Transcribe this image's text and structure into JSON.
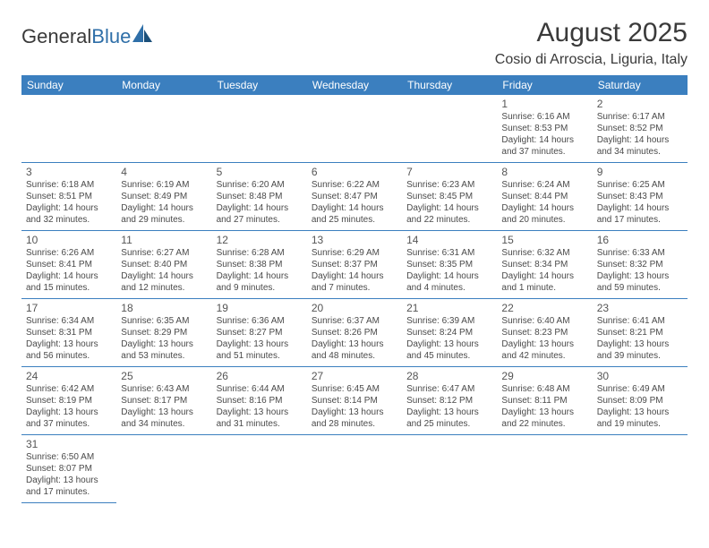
{
  "brand": {
    "name1": "General",
    "name2": "Blue"
  },
  "header": {
    "title": "August 2025",
    "location": "Cosio di Arroscia, Liguria, Italy"
  },
  "colors": {
    "header_bg": "#3b7fbf",
    "header_text": "#ffffff",
    "border": "#3b7fbf",
    "text": "#4a4a4a",
    "title": "#3a3a3a"
  },
  "typography": {
    "title_fontsize": 30,
    "location_fontsize": 16,
    "dayhead_fontsize": 12,
    "cell_fontsize": 10
  },
  "table": {
    "columns": [
      "Sunday",
      "Monday",
      "Tuesday",
      "Wednesday",
      "Thursday",
      "Friday",
      "Saturday"
    ],
    "weeks": [
      [
        null,
        null,
        null,
        null,
        null,
        {
          "n": "1",
          "sr": "6:16 AM",
          "ss": "8:53 PM",
          "dl": "14 hours and 37 minutes."
        },
        {
          "n": "2",
          "sr": "6:17 AM",
          "ss": "8:52 PM",
          "dl": "14 hours and 34 minutes."
        }
      ],
      [
        {
          "n": "3",
          "sr": "6:18 AM",
          "ss": "8:51 PM",
          "dl": "14 hours and 32 minutes."
        },
        {
          "n": "4",
          "sr": "6:19 AM",
          "ss": "8:49 PM",
          "dl": "14 hours and 29 minutes."
        },
        {
          "n": "5",
          "sr": "6:20 AM",
          "ss": "8:48 PM",
          "dl": "14 hours and 27 minutes."
        },
        {
          "n": "6",
          "sr": "6:22 AM",
          "ss": "8:47 PM",
          "dl": "14 hours and 25 minutes."
        },
        {
          "n": "7",
          "sr": "6:23 AM",
          "ss": "8:45 PM",
          "dl": "14 hours and 22 minutes."
        },
        {
          "n": "8",
          "sr": "6:24 AM",
          "ss": "8:44 PM",
          "dl": "14 hours and 20 minutes."
        },
        {
          "n": "9",
          "sr": "6:25 AM",
          "ss": "8:43 PM",
          "dl": "14 hours and 17 minutes."
        }
      ],
      [
        {
          "n": "10",
          "sr": "6:26 AM",
          "ss": "8:41 PM",
          "dl": "14 hours and 15 minutes."
        },
        {
          "n": "11",
          "sr": "6:27 AM",
          "ss": "8:40 PM",
          "dl": "14 hours and 12 minutes."
        },
        {
          "n": "12",
          "sr": "6:28 AM",
          "ss": "8:38 PM",
          "dl": "14 hours and 9 minutes."
        },
        {
          "n": "13",
          "sr": "6:29 AM",
          "ss": "8:37 PM",
          "dl": "14 hours and 7 minutes."
        },
        {
          "n": "14",
          "sr": "6:31 AM",
          "ss": "8:35 PM",
          "dl": "14 hours and 4 minutes."
        },
        {
          "n": "15",
          "sr": "6:32 AM",
          "ss": "8:34 PM",
          "dl": "14 hours and 1 minute."
        },
        {
          "n": "16",
          "sr": "6:33 AM",
          "ss": "8:32 PM",
          "dl": "13 hours and 59 minutes."
        }
      ],
      [
        {
          "n": "17",
          "sr": "6:34 AM",
          "ss": "8:31 PM",
          "dl": "13 hours and 56 minutes."
        },
        {
          "n": "18",
          "sr": "6:35 AM",
          "ss": "8:29 PM",
          "dl": "13 hours and 53 minutes."
        },
        {
          "n": "19",
          "sr": "6:36 AM",
          "ss": "8:27 PM",
          "dl": "13 hours and 51 minutes."
        },
        {
          "n": "20",
          "sr": "6:37 AM",
          "ss": "8:26 PM",
          "dl": "13 hours and 48 minutes."
        },
        {
          "n": "21",
          "sr": "6:39 AM",
          "ss": "8:24 PM",
          "dl": "13 hours and 45 minutes."
        },
        {
          "n": "22",
          "sr": "6:40 AM",
          "ss": "8:23 PM",
          "dl": "13 hours and 42 minutes."
        },
        {
          "n": "23",
          "sr": "6:41 AM",
          "ss": "8:21 PM",
          "dl": "13 hours and 39 minutes."
        }
      ],
      [
        {
          "n": "24",
          "sr": "6:42 AM",
          "ss": "8:19 PM",
          "dl": "13 hours and 37 minutes."
        },
        {
          "n": "25",
          "sr": "6:43 AM",
          "ss": "8:17 PM",
          "dl": "13 hours and 34 minutes."
        },
        {
          "n": "26",
          "sr": "6:44 AM",
          "ss": "8:16 PM",
          "dl": "13 hours and 31 minutes."
        },
        {
          "n": "27",
          "sr": "6:45 AM",
          "ss": "8:14 PM",
          "dl": "13 hours and 28 minutes."
        },
        {
          "n": "28",
          "sr": "6:47 AM",
          "ss": "8:12 PM",
          "dl": "13 hours and 25 minutes."
        },
        {
          "n": "29",
          "sr": "6:48 AM",
          "ss": "8:11 PM",
          "dl": "13 hours and 22 minutes."
        },
        {
          "n": "30",
          "sr": "6:49 AM",
          "ss": "8:09 PM",
          "dl": "13 hours and 19 minutes."
        }
      ],
      [
        {
          "n": "31",
          "sr": "6:50 AM",
          "ss": "8:07 PM",
          "dl": "13 hours and 17 minutes."
        },
        null,
        null,
        null,
        null,
        null,
        null
      ]
    ],
    "labels": {
      "sunrise": "Sunrise:",
      "sunset": "Sunset:",
      "daylight": "Daylight:"
    }
  }
}
